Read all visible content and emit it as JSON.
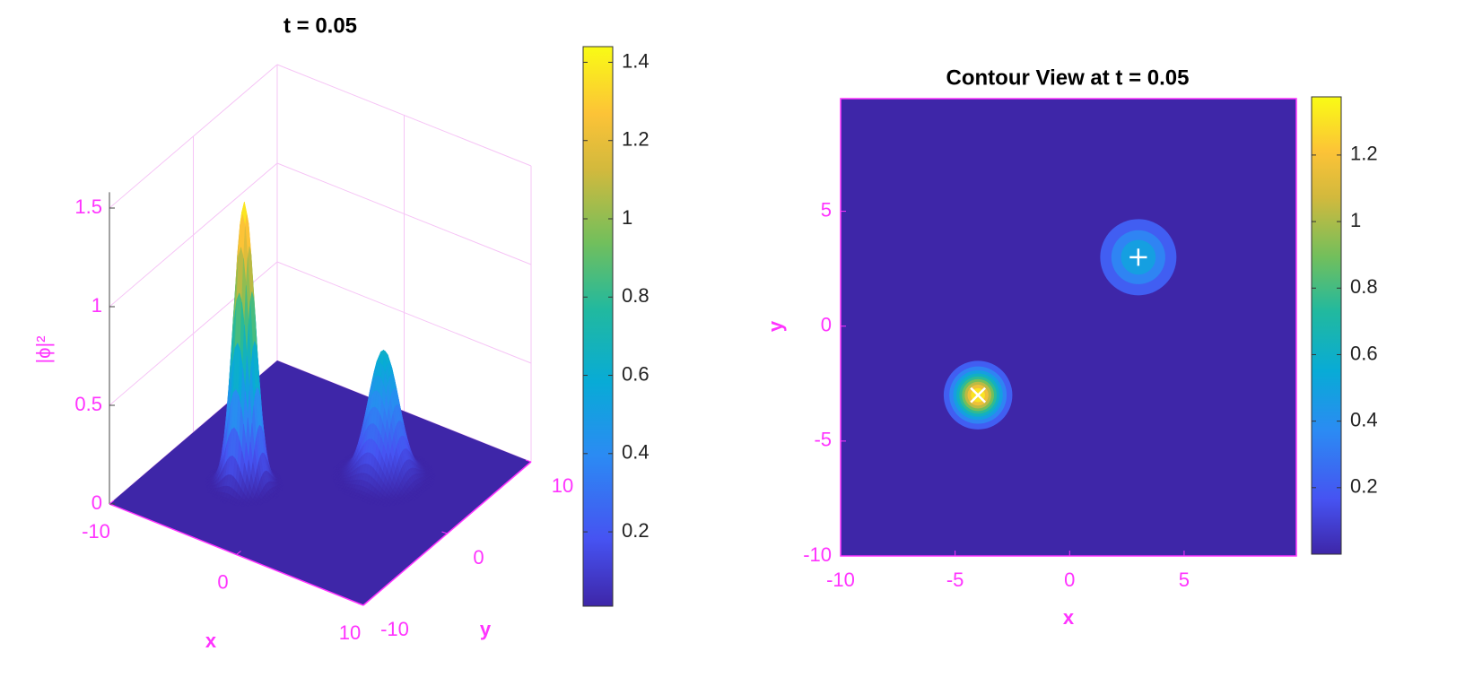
{
  "chart_data": [
    {
      "type": "surface",
      "title": "t = 0.05",
      "xlabel": "x",
      "ylabel": "y",
      "zlabel": "|ϕ|²",
      "xlim": [
        -10,
        10
      ],
      "xticks": [
        -10,
        0,
        10
      ],
      "ylim": [
        -10,
        10
      ],
      "yticks": [
        -10,
        0,
        10
      ],
      "zlim": [
        0,
        1.5
      ],
      "zticks": [
        0,
        0.5,
        1,
        1.5
      ],
      "peaks": [
        {
          "x": -4,
          "y": -3,
          "z": 1.43,
          "sigma": 0.7
        },
        {
          "x": 3,
          "y": 3,
          "z": 0.64,
          "sigma": 1.0
        }
      ],
      "colorbar": {
        "lim": [
          0.01,
          1.44
        ],
        "ticks": [
          0.2,
          0.4,
          0.6,
          0.8,
          1,
          1.2,
          1.4
        ]
      },
      "axis_color": "#ff33ff",
      "grid": true
    },
    {
      "type": "contour",
      "title": "Contour View at t = 0.05",
      "xlabel": "x",
      "ylabel": "y",
      "xlim": [
        -10,
        9.9
      ],
      "xticks": [
        -10,
        -5,
        0,
        5
      ],
      "ylim": [
        -10,
        9.9
      ],
      "yticks": [
        -10,
        -5,
        0,
        5
      ],
      "peaks": [
        {
          "x": -4,
          "y": -3,
          "z": 1.36,
          "sigma": 0.7,
          "marker": "x"
        },
        {
          "x": 3,
          "y": 3,
          "z": 0.55,
          "sigma": 1.0,
          "marker": "+"
        }
      ],
      "colorbar": {
        "lim": [
          0,
          1.375
        ],
        "ticks": [
          0.2,
          0.4,
          0.6,
          0.8,
          1,
          1.2
        ]
      },
      "axis_color": "#ff33ff"
    }
  ]
}
